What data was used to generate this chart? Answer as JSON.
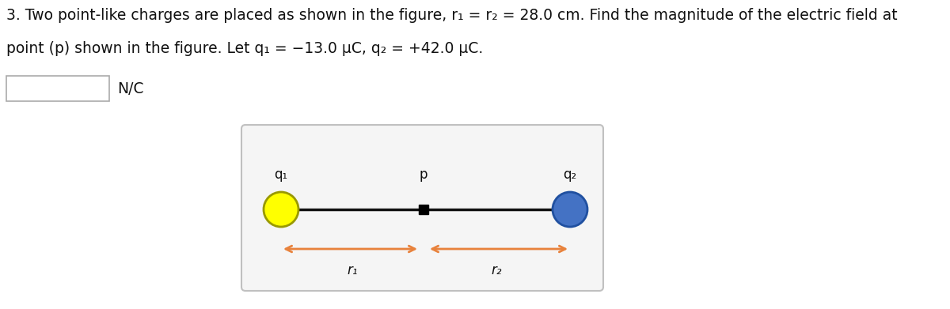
{
  "title_line1": "3. Two point-like charges are placed as shown in the figure, r₁ = r₂ = 28.0 cm. Find the magnitude of the electric field at",
  "title_line2": "point (p) shown in the figure. Let q₁ = −13.0 μC, q₂ = +42.0 μC.",
  "answer_label": "N/C",
  "q1_label": "q₁",
  "q2_label": "q₂",
  "p_label": "p",
  "r1_label": "r₁",
  "r2_label": "r₂",
  "q1_color": "#FFFF00",
  "q1_edge_color": "#999900",
  "q2_color": "#4472C4",
  "q2_edge_color": "#2050A0",
  "line_color": "#111111",
  "arrow_color": "#E8823C",
  "text_color": "#111111",
  "fig_width": 12.0,
  "fig_height": 3.91
}
